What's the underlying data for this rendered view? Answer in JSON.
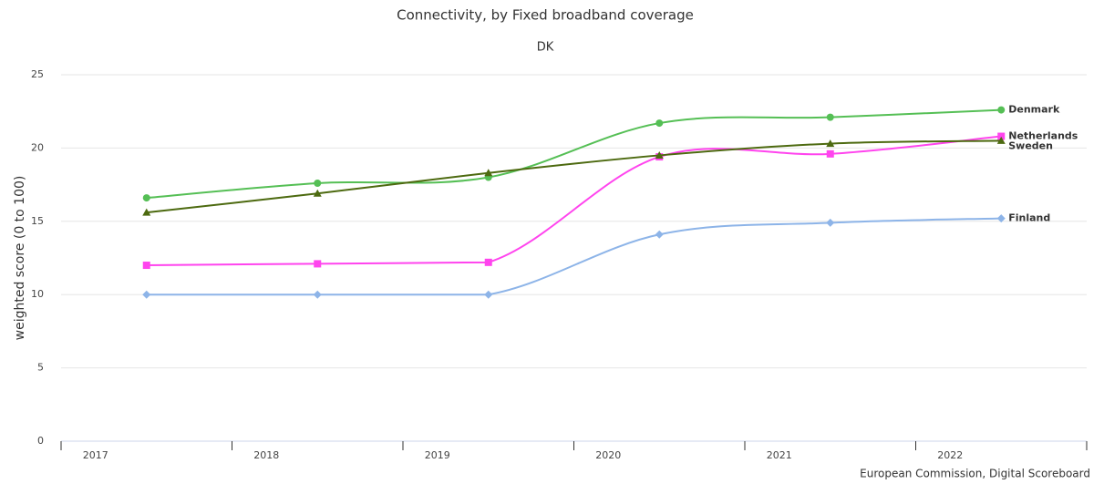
{
  "chart_data": {
    "type": "line",
    "title": "Connectivity, by Fixed broadband coverage",
    "subtitle": "DK",
    "y_label": "weighted score (0 to 100)",
    "credits": "European Commission, Digital Scoreboard",
    "categories": [
      "2017",
      "2018",
      "2019",
      "2020",
      "2021",
      "2022"
    ],
    "series": [
      {
        "name": "Denmark",
        "color": "#55bf55",
        "marker": "circle",
        "values": [
          16.6,
          17.6,
          18.0,
          21.7,
          22.1,
          22.6
        ]
      },
      {
        "name": "Netherlands",
        "color": "#ff44ee",
        "marker": "square",
        "values": [
          12.0,
          12.1,
          12.2,
          19.4,
          19.6,
          20.8
        ]
      },
      {
        "name": "Sweden",
        "color": "#4d6a10",
        "marker": "triangle",
        "values": [
          15.6,
          16.9,
          18.3,
          19.5,
          20.3,
          20.5
        ]
      },
      {
        "name": "Finland",
        "color": "#8db4e8",
        "marker": "diamond",
        "values": [
          10.0,
          10.0,
          10.0,
          14.1,
          14.9,
          15.2
        ]
      }
    ],
    "ylim": [
      0,
      25
    ],
    "yticks": [
      0,
      5,
      10,
      15,
      20,
      25
    ],
    "grid": true
  }
}
